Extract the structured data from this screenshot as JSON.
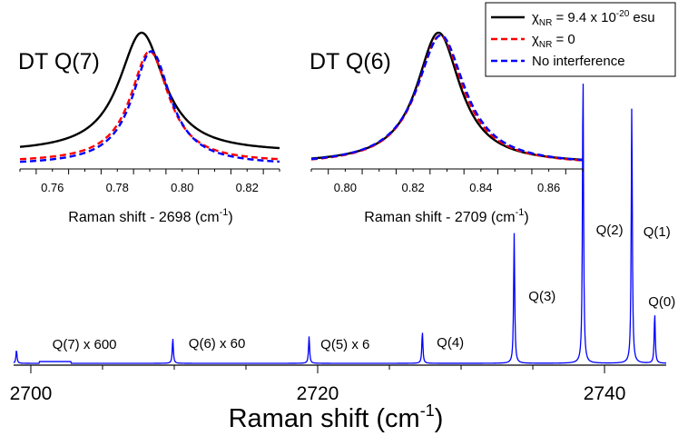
{
  "chart_data": [
    {
      "type": "line",
      "title": "",
      "xlabel": "Raman shift (cm⁻¹)",
      "ylabel": "",
      "xlim": [
        2698.8,
        2744.3
      ],
      "ylim": [
        0,
        1.0
      ],
      "xticks": [
        2700,
        2720,
        2740
      ],
      "xtick_labels": [
        "2700",
        "2720",
        "2740"
      ],
      "grid": false,
      "series": [
        {
          "color": "#0000ff",
          "peaks": [
            {
              "x": 2699.0,
              "y": 0.045
            },
            {
              "x": 2709.9,
              "y": 0.085
            },
            {
              "x": 2719.4,
              "y": 0.092
            },
            {
              "x": 2727.3,
              "y": 0.108
            },
            {
              "x": 2733.7,
              "y": 0.445
            },
            {
              "x": 2738.5,
              "y": 1.0
            },
            {
              "x": 2741.9,
              "y": 0.88
            },
            {
              "x": 2743.5,
              "y": 0.17
            }
          ]
        }
      ],
      "annotations": [
        "Q(7) x 600",
        "Q(6) x 60",
        "Q(5) x 6",
        "Q(4)",
        "Q(3)",
        "Q(2)",
        "Q(1)",
        "Q(0)"
      ],
      "annotation_x": [
        2701.5,
        2711.0,
        2720.2,
        2728.3,
        2734.7,
        2739.4,
        2742.7,
        2744.0
      ]
    },
    {
      "type": "line",
      "panel_label": "DT Q(7)",
      "xlabel": "Raman shift - 2698 (cm⁻¹)",
      "xlim": [
        0.75,
        0.83
      ],
      "ylim": [
        0,
        1.05
      ],
      "xticks": [
        0.76,
        0.78,
        0.8,
        0.82
      ],
      "xtick_labels": [
        "0.76",
        "0.78",
        "0.80",
        "0.82"
      ],
      "series": [
        {
          "name": "χNR = 9.4 x 10-20 esu",
          "color": "#000000",
          "dash": "solid",
          "center": 0.7875,
          "width": 0.0085,
          "asym": 0.0,
          "offset": 0.095,
          "amp": 0.905
        },
        {
          "name": "χNR = 0",
          "color": "#ff0000",
          "dash": "dashed",
          "center": 0.79,
          "width": 0.0072,
          "asym": 0.0,
          "offset": 0.02,
          "amp": 0.84
        },
        {
          "name": "No interference",
          "color": "#0000ff",
          "dash": "dashed",
          "center": 0.7905,
          "width": 0.0072,
          "asym": 0.0,
          "offset": 0.0,
          "amp": 0.86
        }
      ]
    },
    {
      "type": "line",
      "panel_label": "DT Q(6)",
      "xlabel": "Raman shift - 2709 (cm⁻¹)",
      "xlim": [
        0.79,
        0.87
      ],
      "ylim": [
        0,
        1.05
      ],
      "xticks": [
        0.8,
        0.82,
        0.84,
        0.86
      ],
      "xtick_labels": [
        "0.80",
        "0.82",
        "0.84",
        "0.86"
      ],
      "series": [
        {
          "name": "χNR = 9.4 x 10-20 esu",
          "color": "#000000",
          "dash": "solid",
          "center": 0.8275,
          "width": 0.0078,
          "offset": 0.01,
          "amp": 0.99
        },
        {
          "name": "χNR = 0",
          "color": "#ff0000",
          "dash": "dashed",
          "center": 0.828,
          "width": 0.0083,
          "offset": 0.0,
          "amp": 0.98
        },
        {
          "name": "No interference",
          "color": "#0000ff",
          "dash": "dashed",
          "center": 0.8282,
          "width": 0.0086,
          "offset": 0.0,
          "amp": 0.98
        }
      ]
    }
  ],
  "legend": {
    "placement": "top-right",
    "entries": [
      {
        "symbol": "χ",
        "sub": "NR",
        "text": " = 9.4 x 10",
        "sup": "-20",
        "tail": " esu",
        "color": "#000000",
        "dash": "solid"
      },
      {
        "symbol": "χ",
        "sub": "NR",
        "text": " = 0",
        "sup": "",
        "tail": "",
        "color": "#ff0000",
        "dash": "dashed"
      },
      {
        "symbol": "",
        "sub": "",
        "text": "No interference",
        "sup": "",
        "tail": "",
        "color": "#0000ff",
        "dash": "dashed"
      }
    ]
  },
  "main_xlabel": {
    "prefix": "Raman shift (cm",
    "sup": "-1",
    "suffix": ")"
  },
  "inset_xlabels": [
    {
      "prefix": "Raman shift - 2698 (cm",
      "sup": "-1",
      "suffix": ")"
    },
    {
      "prefix": "Raman shift - 2709 (cm",
      "sup": "-1",
      "suffix": ")"
    }
  ]
}
